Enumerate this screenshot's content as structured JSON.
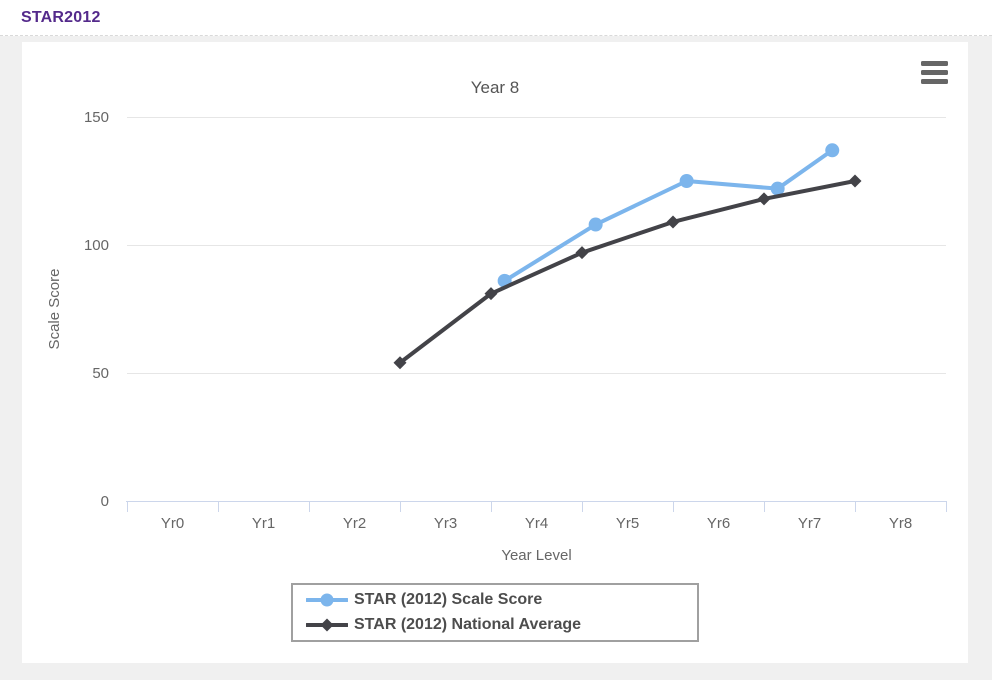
{
  "page": {
    "title": "STAR2012"
  },
  "icons": {
    "menu": "hamburger-icon"
  },
  "colors": {
    "accent_purple": "#542a8b",
    "page_bg": "#f0f0f0",
    "panel_bg": "#ffffff",
    "series_blue": "#7cb5ec",
    "series_dark": "#434348",
    "gridline": "#e6e6e6",
    "axis_line": "#ccd6eb",
    "tick_label": "#666666",
    "chart_title": "#555555",
    "legend_text": "#4d4d4d",
    "legend_border": "#a0a0a0",
    "menu_icon": "#666666"
  },
  "chart_data": {
    "type": "line",
    "title": "Year 8",
    "xlabel": "Year Level",
    "ylabel": "Scale Score",
    "categories": [
      "Yr0",
      "Yr1",
      "Yr2",
      "Yr3",
      "Yr4",
      "Yr5",
      "Yr6",
      "Yr7",
      "Yr8"
    ],
    "tick_placement": "between",
    "y_ticks": [
      0,
      50,
      100,
      150
    ],
    "ylim": [
      0,
      150
    ],
    "grid": "horizontal-only",
    "legend_position": "bottom-center",
    "series": [
      {
        "name": "STAR (2012) Scale Score",
        "color": "#7cb5ec",
        "marker": "circle",
        "x": [
          3.65,
          4.65,
          5.65,
          6.65,
          7.25
        ],
        "y": [
          86,
          108,
          125,
          122,
          137
        ]
      },
      {
        "name": "STAR (2012) National Average",
        "color": "#434348",
        "marker": "diamond",
        "x": [
          2.5,
          3.5,
          4.5,
          5.5,
          6.5,
          7.5
        ],
        "y": [
          54,
          81,
          97,
          109,
          118,
          125
        ]
      }
    ]
  }
}
